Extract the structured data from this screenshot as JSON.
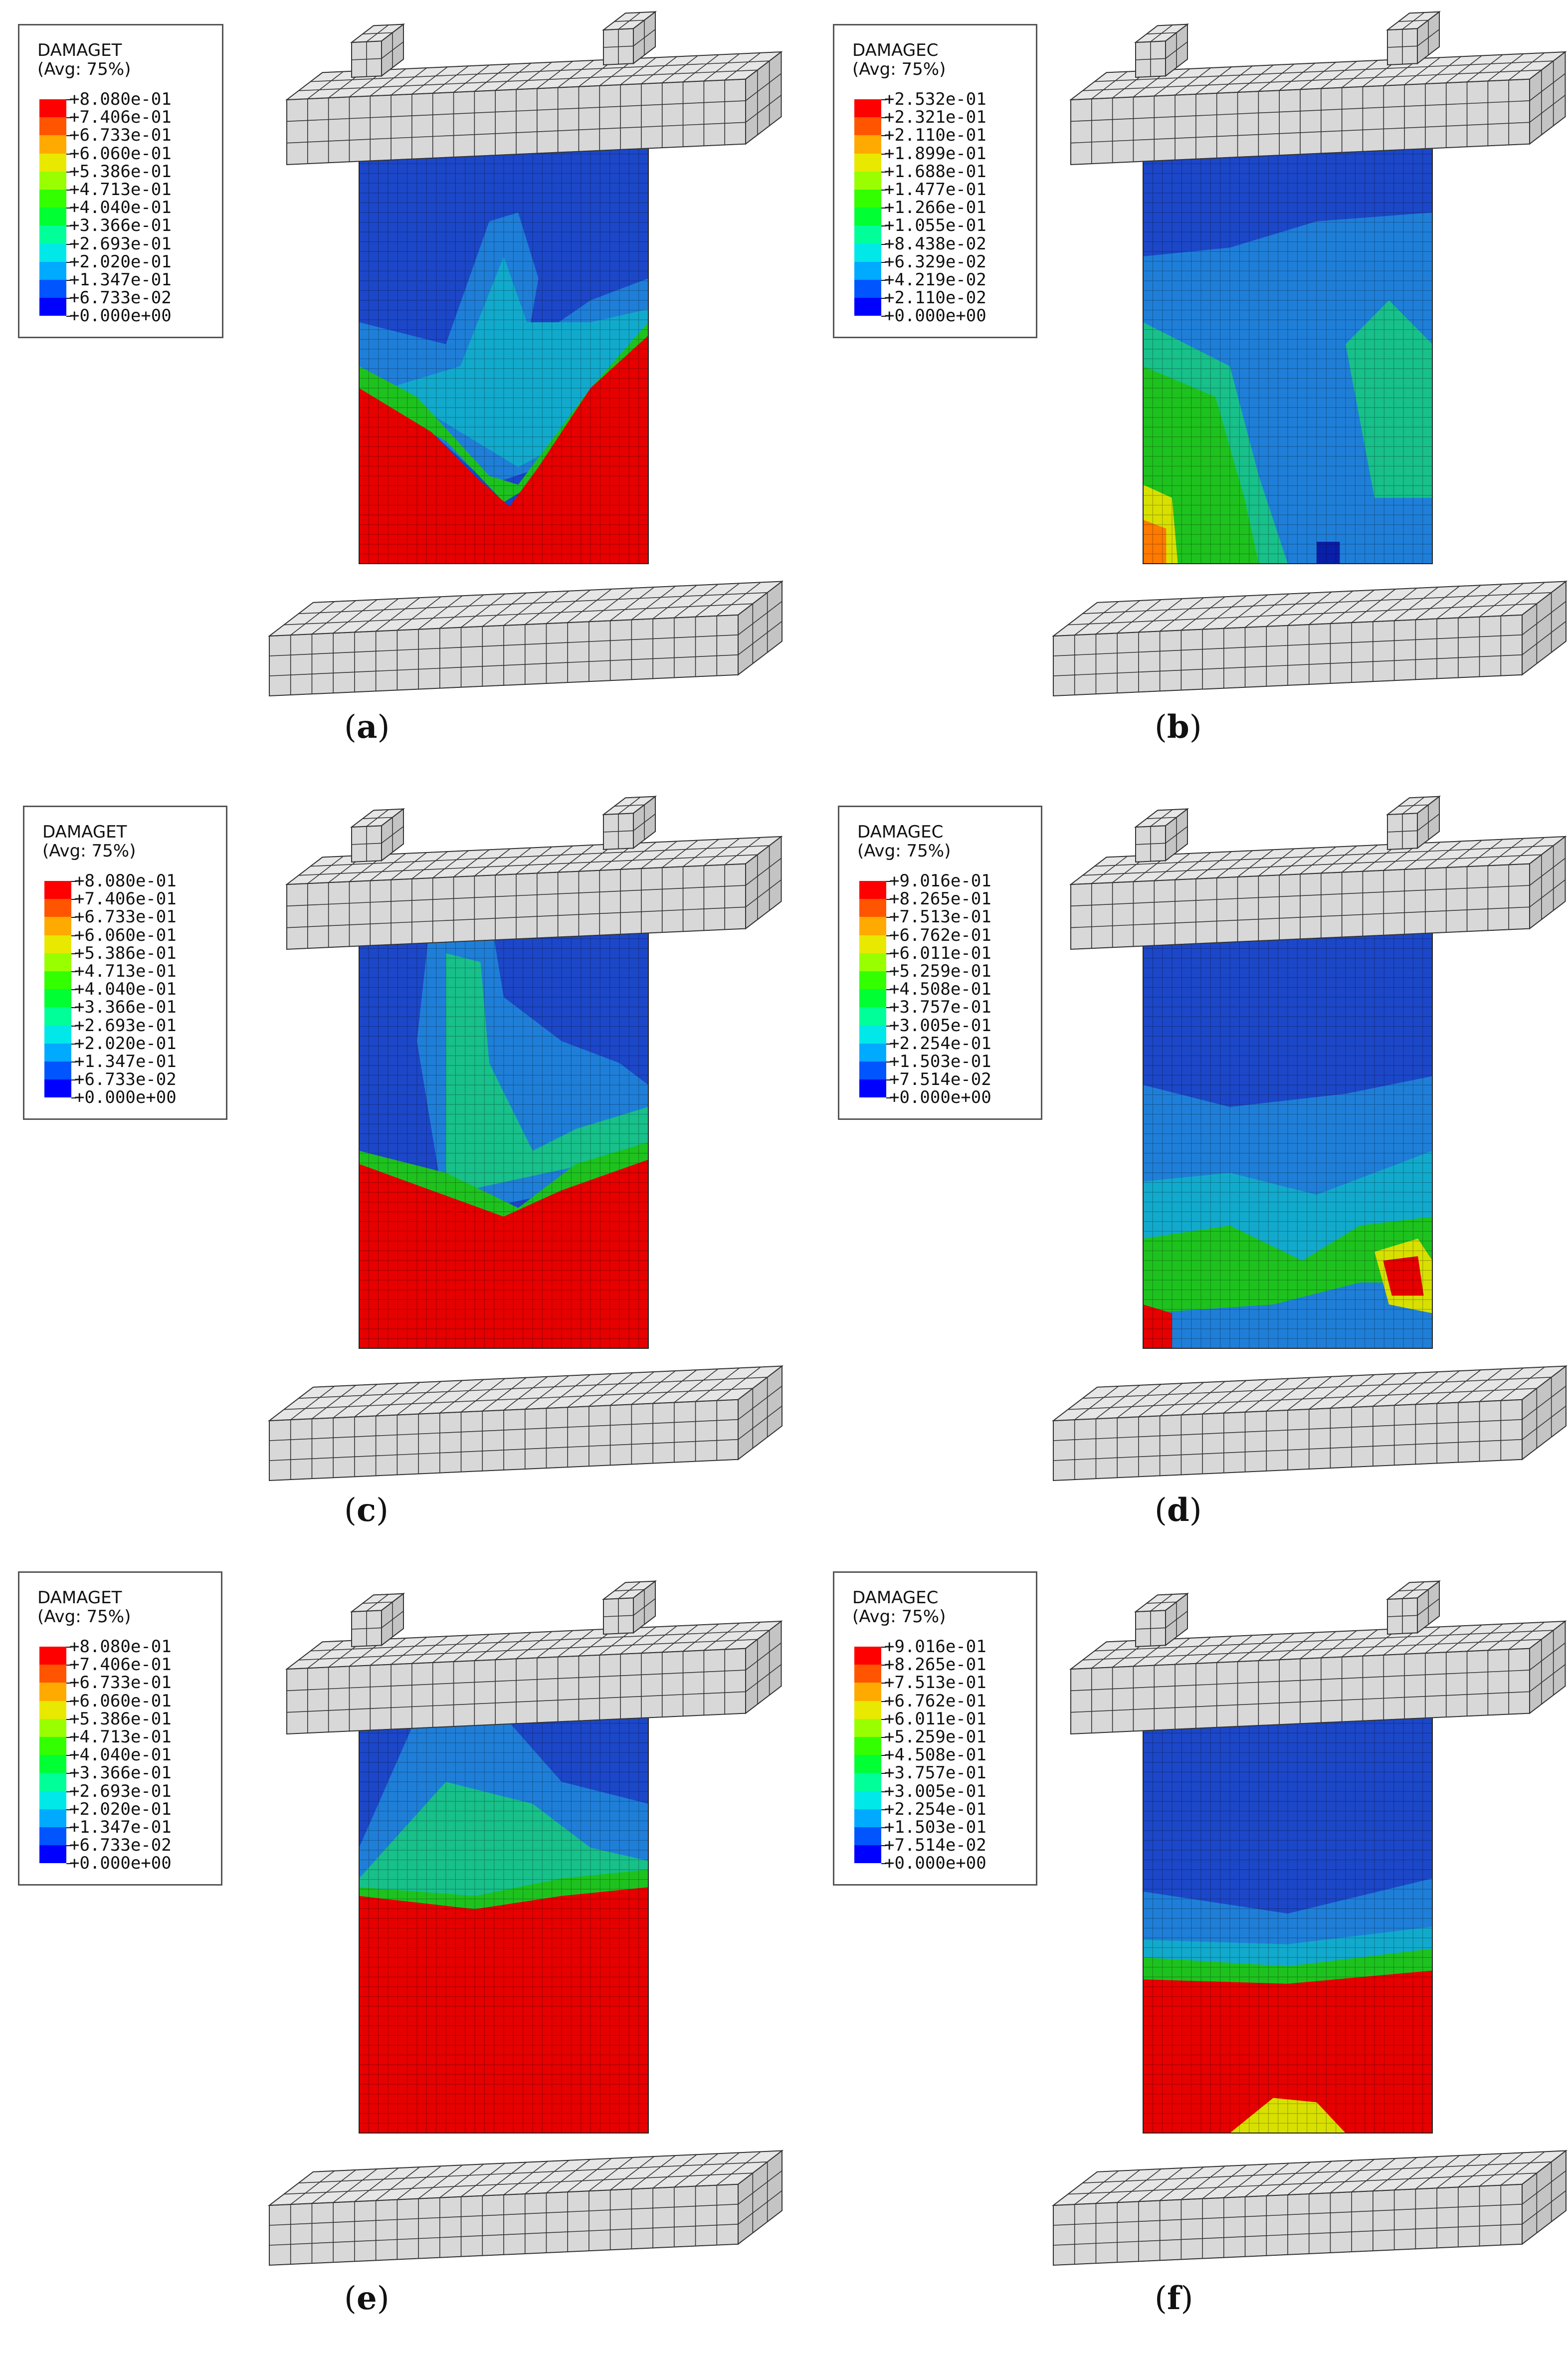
{
  "legend_colors": [
    "#ff0000",
    "#ff5500",
    "#ffaa00",
    "#e8e800",
    "#99ff00",
    "#33ff00",
    "#00ff33",
    "#00ff99",
    "#00e8e8",
    "#00aaff",
    "#0055ff",
    "#0000ff"
  ],
  "panels": [
    {
      "id": "a",
      "caption": "a",
      "variable": "DAMAGET",
      "avg": "(Avg: 75%)",
      "values": [
        "+8.080e-01",
        "+7.406e-01",
        "+6.733e-01",
        "+6.060e-01",
        "+5.386e-01",
        "+4.713e-01",
        "+4.040e-01",
        "+3.366e-01",
        "+2.693e-01",
        "+2.020e-01",
        "+1.347e-01",
        "+6.733e-02",
        "+0.000e+00"
      ]
    },
    {
      "id": "b",
      "caption": "b",
      "variable": "DAMAGEC",
      "avg": "(Avg: 75%)",
      "values": [
        "+2.532e-01",
        "+2.321e-01",
        "+2.110e-01",
        "+1.899e-01",
        "+1.688e-01",
        "+1.477e-01",
        "+1.266e-01",
        "+1.055e-01",
        "+8.438e-02",
        "+6.329e-02",
        "+4.219e-02",
        "+2.110e-02",
        "+0.000e+00"
      ]
    },
    {
      "id": "c",
      "caption": "c",
      "variable": "DAMAGET",
      "avg": "(Avg: 75%)",
      "values": [
        "+8.080e-01",
        "+7.406e-01",
        "+6.733e-01",
        "+6.060e-01",
        "+5.386e-01",
        "+4.713e-01",
        "+4.040e-01",
        "+3.366e-01",
        "+2.693e-01",
        "+2.020e-01",
        "+1.347e-01",
        "+6.733e-02",
        "+0.000e+00"
      ]
    },
    {
      "id": "d",
      "caption": "d",
      "variable": "DAMAGEC",
      "avg": "(Avg: 75%)",
      "values": [
        "+9.016e-01",
        "+8.265e-01",
        "+7.513e-01",
        "+6.762e-01",
        "+6.011e-01",
        "+5.259e-01",
        "+4.508e-01",
        "+3.757e-01",
        "+3.005e-01",
        "+2.254e-01",
        "+1.503e-01",
        "+7.514e-02",
        "+0.000e+00"
      ]
    },
    {
      "id": "e",
      "caption": "e",
      "variable": "DAMAGET",
      "avg": "(Avg: 75%)",
      "values": [
        "+8.080e-01",
        "+7.406e-01",
        "+6.733e-01",
        "+6.060e-01",
        "+5.386e-01",
        "+4.713e-01",
        "+4.040e-01",
        "+3.366e-01",
        "+2.693e-01",
        "+2.020e-01",
        "+1.347e-01",
        "+6.733e-02",
        "+0.000e+00"
      ]
    },
    {
      "id": "f",
      "caption": "f",
      "variable": "DAMAGEC",
      "avg": "(Avg: 75%)",
      "values": [
        "+9.016e-01",
        "+8.265e-01",
        "+7.513e-01",
        "+6.762e-01",
        "+6.011e-01",
        "+5.259e-01",
        "+4.508e-01",
        "+3.757e-01",
        "+3.005e-01",
        "+2.254e-01",
        "+1.503e-01",
        "+7.514e-02",
        "+0.000e+00"
      ]
    }
  ]
}
